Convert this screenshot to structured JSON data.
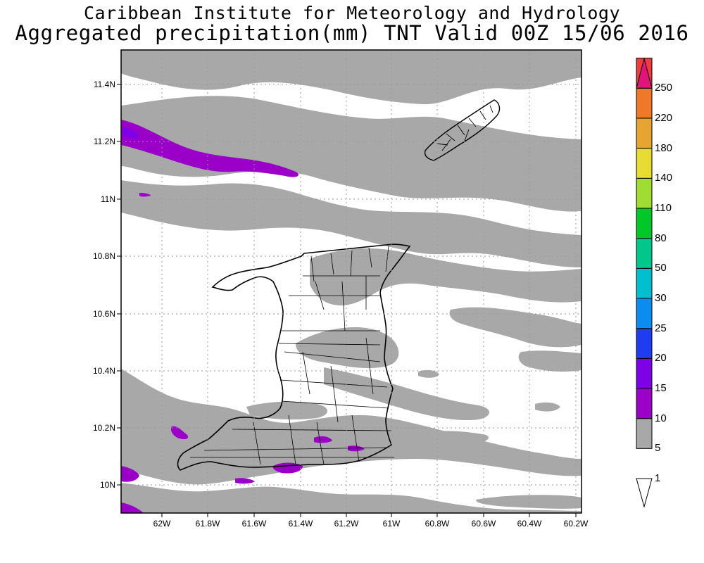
{
  "title": {
    "line1": "Caribbean Institute for Meteorology and Hydrology",
    "line2": "Aggregated precipitation(mm) TNT Valid 00Z 15/06 2016"
  },
  "axes": {
    "x_ticks": [
      "62W",
      "61.8W",
      "61.6W",
      "61.4W",
      "61.2W",
      "61W",
      "60.8W",
      "60.6W",
      "60.4W",
      "60.2W"
    ],
    "y_ticks": [
      "11.4N",
      "11.2N",
      "11N",
      "10.8N",
      "10.6N",
      "10.4N",
      "10.2N",
      "10N"
    ],
    "grid": "dotted"
  },
  "legend": {
    "levels": [
      "1",
      "5",
      "10",
      "15",
      "20",
      "25",
      "30",
      "50",
      "80",
      "110",
      "140",
      "180",
      "220",
      "250"
    ],
    "colors": [
      "#ffffff",
      "#a8a8a8",
      "#9b00c8",
      "#7d00e8",
      "#1f3cf0",
      "#0b8cf0",
      "#00c0d0",
      "#00c88c",
      "#00c828",
      "#a0dc32",
      "#e6dc32",
      "#e6a532",
      "#f07828",
      "#f03c3c",
      "#e0147a"
    ]
  },
  "precip_colors": {
    "light": "#a8a8a8",
    "moderate": "#9b00c8",
    "heavier": "#7d00e8"
  }
}
